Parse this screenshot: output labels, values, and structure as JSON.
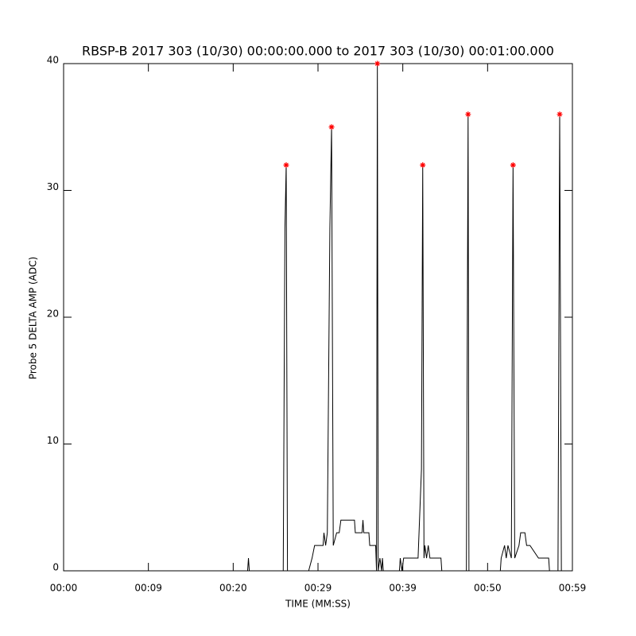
{
  "chart_data": {
    "type": "line",
    "title": "RBSP-B 2017 303 (10/30) 00:00:00.000 to 2017 303 (10/30) 00:01:00.000",
    "x_label": "TIME (MM:SS)",
    "y_label": "Probe 5 DELTA AMP (ADC)",
    "xlim": [
      0,
      60
    ],
    "ylim": [
      0,
      40
    ],
    "xticks": [
      {
        "value": 0,
        "label": "00:00"
      },
      {
        "value": 10,
        "label": "00:09"
      },
      {
        "value": 20,
        "label": "00:20"
      },
      {
        "value": 30,
        "label": "00:29"
      },
      {
        "value": 40,
        "label": "00:39"
      },
      {
        "value": 50,
        "label": "00:50"
      },
      {
        "value": 60,
        "label": "00:59"
      }
    ],
    "yticks": [
      0,
      10,
      20,
      30,
      40
    ],
    "series": [
      {
        "color": "#000000",
        "marker": "none",
        "x": [
          0,
          21.7,
          21.8,
          21.9,
          25.9,
          26.1,
          26.25,
          26.4,
          28.9,
          29.3,
          29.6,
          30.6,
          30.7,
          30.9,
          31.1,
          31.4,
          31.6,
          31.8,
          32.2,
          32.5,
          32.7,
          34.3,
          34.4,
          35.2,
          35.3,
          35.4,
          36.0,
          36.1,
          36.8,
          36.9,
          37.0,
          37.1,
          37.3,
          37.5,
          37.6,
          37.7,
          39.6,
          39.7,
          39.9,
          40.1,
          41.8,
          42.2,
          42.35,
          42.5,
          42.6,
          42.8,
          43.0,
          43.2,
          44.5,
          44.6,
          47.5,
          47.7,
          47.8,
          51.5,
          51.6,
          52.0,
          52.2,
          52.4,
          52.8,
          53.0,
          53.2,
          53.7,
          53.9,
          54.4,
          54.6,
          55.0,
          56.0,
          57.2,
          57.3,
          58.3,
          58.5,
          58.7,
          60
        ],
        "values": [
          0,
          0,
          1,
          0,
          0,
          27,
          32,
          0,
          0,
          1,
          2,
          2,
          3,
          2,
          3,
          27,
          35,
          2,
          3,
          3,
          4,
          4,
          3,
          3,
          4,
          3,
          3,
          2,
          2,
          0,
          40,
          0,
          1,
          0,
          1,
          0,
          0,
          1,
          0,
          1,
          1,
          8,
          32,
          1,
          2,
          1,
          2,
          1,
          1,
          0,
          0,
          36,
          0,
          0,
          1,
          2,
          1,
          2,
          1,
          32,
          1,
          2,
          3,
          3,
          2,
          2,
          1,
          1,
          0,
          0,
          36,
          0,
          0
        ]
      },
      {
        "color": "#ff0000",
        "marker": "asterisk",
        "x": [
          26.25,
          31.6,
          37.0,
          42.35,
          47.7,
          53.0,
          58.5
        ],
        "values": [
          32,
          35,
          40,
          32,
          36,
          32,
          36
        ]
      }
    ]
  }
}
